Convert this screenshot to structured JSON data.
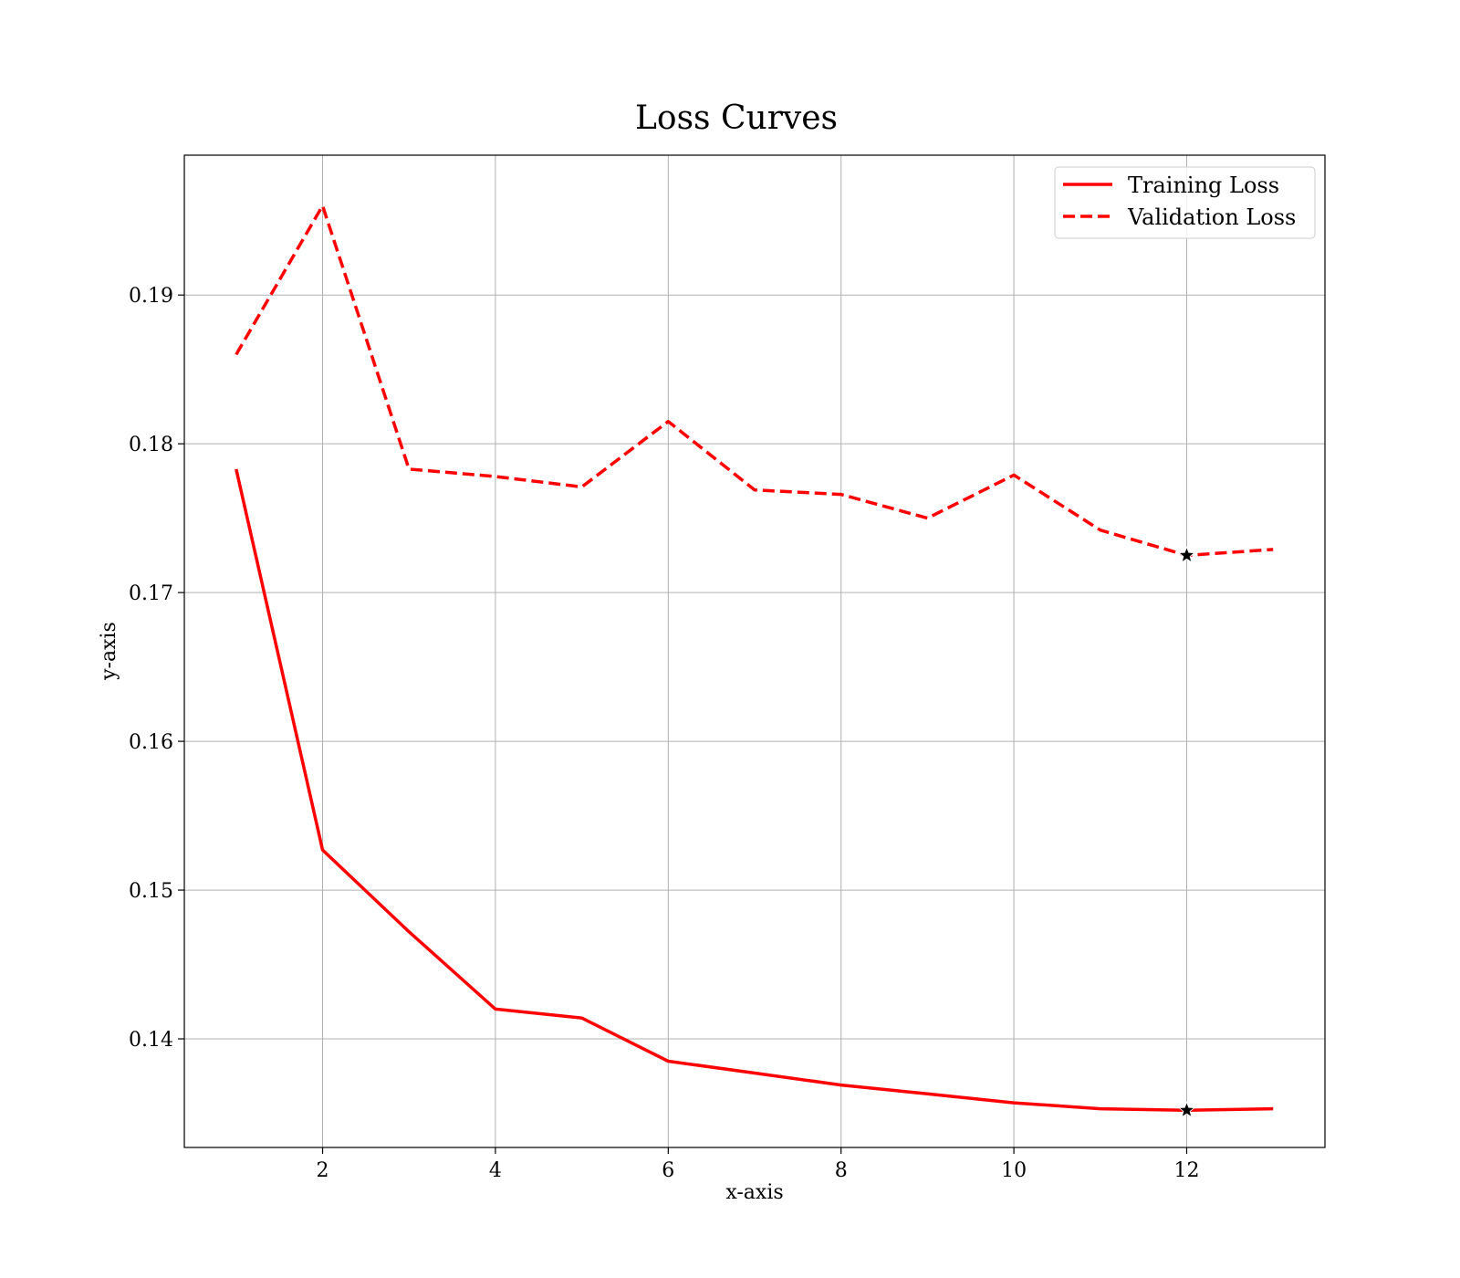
{
  "chart_data": {
    "type": "line",
    "title": "Loss Curves",
    "xlabel": "x-axis",
    "ylabel": "y-axis",
    "xlim": [
      0.4,
      13.6
    ],
    "ylim": [
      0.1327,
      0.1994
    ],
    "xticks": [
      2,
      4,
      6,
      8,
      10,
      12
    ],
    "yticks": [
      0.14,
      0.15,
      0.16,
      0.17,
      0.18,
      0.19
    ],
    "xtick_labels": [
      "2",
      "4",
      "6",
      "8",
      "10",
      "12"
    ],
    "ytick_labels": [
      "0.14",
      "0.15",
      "0.16",
      "0.17",
      "0.18",
      "0.19"
    ],
    "grid": true,
    "legend_position": "top-right",
    "x": [
      1,
      2,
      3,
      4,
      5,
      6,
      7,
      8,
      9,
      10,
      11,
      12,
      13
    ],
    "series": [
      {
        "name": "Training Loss",
        "style": "solid",
        "color": "#ff0000",
        "values": [
          0.1783,
          0.1527,
          0.1472,
          0.142,
          0.1414,
          0.1385,
          0.1377,
          0.1369,
          0.1363,
          0.1357,
          0.1353,
          0.1352,
          0.1353
        ]
      },
      {
        "name": "Validation Loss",
        "style": "dashed",
        "color": "#ff0000",
        "values": [
          0.186,
          0.196,
          0.1783,
          0.1778,
          0.1771,
          0.1815,
          0.1769,
          0.1766,
          0.175,
          0.1779,
          0.1742,
          0.1725,
          0.1729
        ]
      }
    ],
    "markers": [
      {
        "series": "Training Loss",
        "x": 12,
        "y": 0.1352,
        "shape": "star"
      },
      {
        "series": "Validation Loss",
        "x": 12,
        "y": 0.1725,
        "shape": "star"
      }
    ]
  }
}
